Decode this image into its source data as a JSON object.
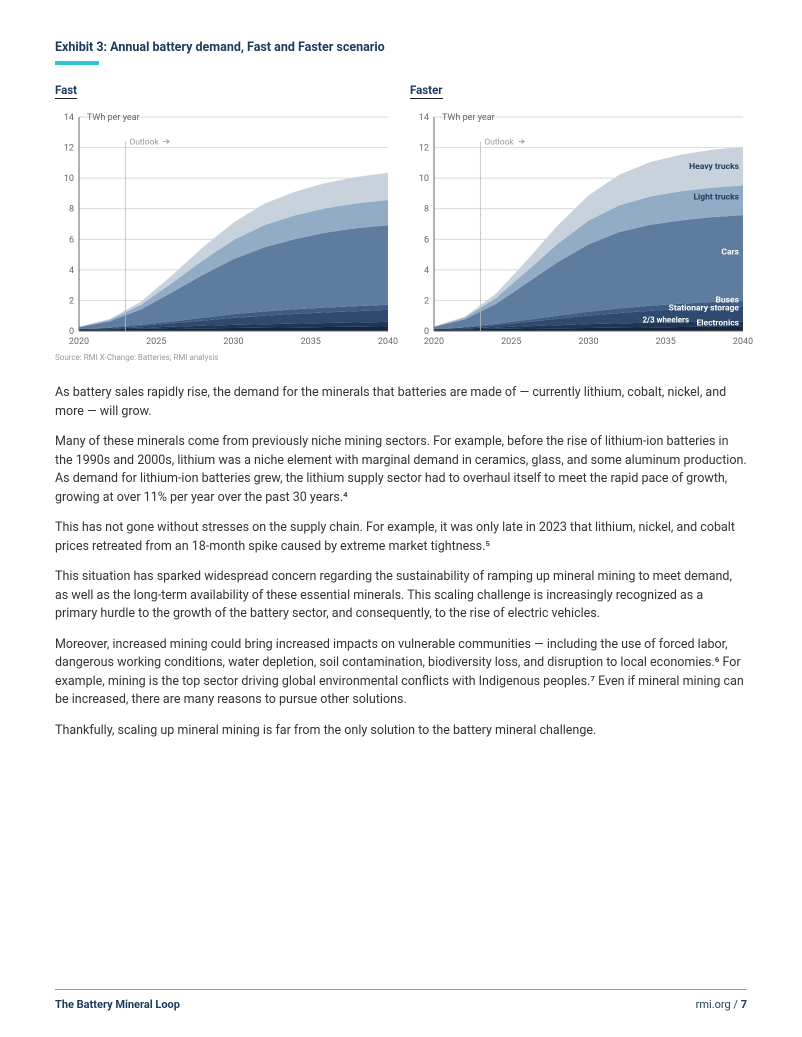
{
  "exhibit": {
    "title": "Exhibit 3: Annual battery demand, Fast and Faster scenario",
    "source": "Source: RMI X-Change: Batteries; RMI analysis"
  },
  "charts": {
    "yaxis_label": "TWh per year",
    "outlook_label": "Outlook",
    "ylim": [
      0,
      14
    ],
    "ytick_step": 2,
    "yticks": [
      0,
      2,
      4,
      6,
      8,
      10,
      12,
      14
    ],
    "xlim": [
      2020,
      2040
    ],
    "xticks": [
      2020,
      2025,
      2030,
      2035,
      2040
    ],
    "x_values": [
      2020,
      2022,
      2024,
      2026,
      2028,
      2030,
      2032,
      2034,
      2036,
      2038,
      2040
    ],
    "outlook_x": 2023,
    "grid_color": "#cccccc",
    "axis_color": "#666666",
    "tick_fontsize": 9,
    "label_fontsize": 9,
    "layer_label_color_dark": "#1b3a5c",
    "layer_label_color_light": "#ffffff",
    "fast": {
      "title": "Fast",
      "layers": [
        {
          "name": "Electronics",
          "color": "#14263f",
          "values": [
            0.1,
            0.12,
            0.14,
            0.16,
            0.18,
            0.2,
            0.22,
            0.24,
            0.26,
            0.28,
            0.3
          ]
        },
        {
          "name": "2/3 wheelers",
          "color": "#1f3655",
          "values": [
            0.02,
            0.04,
            0.08,
            0.12,
            0.16,
            0.2,
            0.22,
            0.24,
            0.26,
            0.28,
            0.3
          ]
        },
        {
          "name": "Stationary storage",
          "color": "#2e4a6e",
          "values": [
            0.02,
            0.05,
            0.12,
            0.22,
            0.34,
            0.46,
            0.56,
            0.64,
            0.7,
            0.74,
            0.78
          ]
        },
        {
          "name": "Buses",
          "color": "#3f5d84",
          "values": [
            0.01,
            0.03,
            0.07,
            0.12,
            0.18,
            0.24,
            0.28,
            0.3,
            0.32,
            0.33,
            0.34
          ]
        },
        {
          "name": "Cars",
          "color": "#5d7c9e",
          "values": [
            0.1,
            0.4,
            1.0,
            1.9,
            2.8,
            3.6,
            4.2,
            4.6,
            4.9,
            5.1,
            5.2
          ]
        },
        {
          "name": "Light trucks",
          "color": "#93acc6",
          "values": [
            0.02,
            0.1,
            0.3,
            0.6,
            0.95,
            1.25,
            1.45,
            1.55,
            1.6,
            1.63,
            1.65
          ]
        },
        {
          "name": "Heavy trucks",
          "color": "#c8d2dc",
          "values": [
            0.01,
            0.05,
            0.2,
            0.5,
            0.85,
            1.15,
            1.4,
            1.55,
            1.65,
            1.72,
            1.78
          ]
        }
      ]
    },
    "faster": {
      "title": "Faster",
      "layers": [
        {
          "name": "Electronics",
          "color": "#14263f",
          "values": [
            0.1,
            0.12,
            0.14,
            0.16,
            0.18,
            0.2,
            0.22,
            0.24,
            0.26,
            0.28,
            0.3
          ]
        },
        {
          "name": "2/3 wheelers",
          "color": "#1f3655",
          "values": [
            0.02,
            0.05,
            0.1,
            0.15,
            0.2,
            0.25,
            0.28,
            0.3,
            0.32,
            0.33,
            0.34
          ]
        },
        {
          "name": "Stationary storage",
          "color": "#2e4a6e",
          "values": [
            0.02,
            0.06,
            0.15,
            0.28,
            0.42,
            0.56,
            0.68,
            0.78,
            0.86,
            0.92,
            0.96
          ]
        },
        {
          "name": "Buses",
          "color": "#3f5d84",
          "values": [
            0.01,
            0.03,
            0.08,
            0.14,
            0.2,
            0.26,
            0.3,
            0.33,
            0.35,
            0.37,
            0.38
          ]
        },
        {
          "name": "Cars",
          "color": "#5d7c9e",
          "values": [
            0.12,
            0.5,
            1.3,
            2.4,
            3.5,
            4.4,
            5.0,
            5.3,
            5.45,
            5.55,
            5.6
          ]
        },
        {
          "name": "Light trucks",
          "color": "#93acc6",
          "values": [
            0.02,
            0.12,
            0.38,
            0.78,
            1.2,
            1.55,
            1.75,
            1.85,
            1.9,
            1.93,
            1.95
          ]
        },
        {
          "name": "Heavy trucks",
          "color": "#c8d2dc",
          "values": [
            0.01,
            0.06,
            0.28,
            0.7,
            1.2,
            1.65,
            2.0,
            2.25,
            2.4,
            2.48,
            2.52
          ]
        }
      ],
      "layer_labels": [
        {
          "text": "Heavy trucks",
          "y_twh": 10.6,
          "color": "#1b3a5c",
          "bold": true
        },
        {
          "text": "Light trucks",
          "y_twh": 8.6,
          "color": "#1b3a5c",
          "bold": true
        },
        {
          "text": "Cars",
          "y_twh": 5.0,
          "color": "#ffffff",
          "bold": true
        },
        {
          "text": "Buses",
          "y_twh": 1.85,
          "color": "#ffffff",
          "bold": true
        },
        {
          "text": "Stationary storage",
          "y_twh": 1.35,
          "color": "#ffffff",
          "bold": true
        },
        {
          "text": "Electronics",
          "y_twh": 0.35,
          "color": "#ffffff",
          "bold": true
        }
      ],
      "wheeler_label": {
        "text": "2/3 wheelers",
        "x_year": 2035,
        "y_twh": 0.55,
        "color": "#ffffff"
      }
    }
  },
  "paragraphs": [
    "As battery sales rapidly rise, the demand for the minerals that batteries are made of — currently lithium, cobalt, nickel, and more — will grow.",
    "Many of these minerals come from previously niche mining sectors. For example, before the rise of lithium-ion batteries in the 1990s and 2000s, lithium was a niche element with marginal demand in ceramics, glass, and some aluminum production. As demand for lithium-ion batteries grew, the lithium supply sector had to overhaul itself to meet the rapid pace of growth, growing at over 11% per year over the past 30 years.⁴",
    "This has not gone without stresses on the supply chain. For example, it was only late in 2023 that lithium, nickel, and cobalt prices retreated from an 18-month spike caused by extreme market tightness.⁵",
    "This situation has sparked widespread concern regarding the sustainability of ramping up mineral mining to meet demand, as well as the long-term availability of these essential minerals. This scaling challenge is increasingly recognized as a primary hurdle to the growth of the battery sector, and consequently, to the rise of electric vehicles.",
    "Moreover, increased mining could bring increased impacts on vulnerable communities — including the use of forced labor, dangerous working conditions, water depletion, soil contamination, biodiversity loss, and disruption to local economies.⁶ For example, mining is the top sector driving global environmental conflicts with Indigenous peoples.⁷ Even if mineral mining can be increased, there are many reasons to pursue other solutions.",
    "Thankfully, scaling up mineral mining is far from the only solution to the battery mineral challenge."
  ],
  "footer": {
    "left": "The Battery Mineral Loop",
    "right_url": "rmi.org",
    "right_sep": " / ",
    "right_page": "7"
  }
}
